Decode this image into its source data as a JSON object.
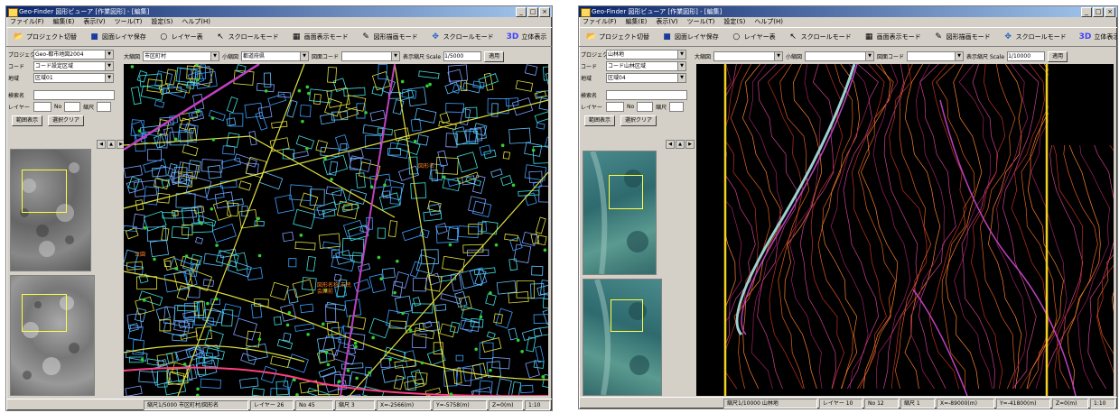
{
  "window1": {
    "title": "Geo-Finder 図形ビューア [作業図形] - [編集]",
    "menu": [
      "ファイル(F)",
      "編集(E)",
      "表示(V)",
      "ツール(T)",
      "設定(S)",
      "ヘルプ(H)"
    ],
    "toolbar": [
      "プロジェクト切替",
      "図面レイヤ保存",
      "レイヤー表",
      "スクロールモード",
      "画面表示モード",
      "図形描画モード",
      "スクロールモード",
      "3D",
      "立体表示"
    ],
    "fields": [
      {
        "label": "プロジェクト",
        "value": "Geo-都市地図2004"
      },
      {
        "label": "コード",
        "value": "コード設定区域"
      },
      {
        "label": "地域",
        "value": "区域01"
      }
    ],
    "search_label": "検索名",
    "layer_label": "レイヤー",
    "layer_no_label": "No",
    "layer_count_label": "縮尺",
    "buttons": [
      "範囲表示",
      "選択クリア"
    ],
    "mapbar": {
      "label1": "大縮図",
      "value1": "市区町村",
      "label2": "小縮図",
      "value2": "都道府県",
      "label3": "図面コード",
      "value3": "",
      "label4": "表示縮尺 Scale",
      "value4": "1/5000",
      "go": "適用"
    },
    "map_labels": [
      "図形名",
      "公園",
      "図形名称 市民会館前"
    ],
    "status": [
      "縮尺1/5000 市区町村/図形名",
      "レイヤー 26",
      "No 45",
      "縮尺 3",
      "X=-2566(m)",
      "Y=-5758(m)",
      "Z=0(m)",
      "1:10"
    ]
  },
  "window2": {
    "title": "Geo-Finder 図形ビューア [作業図形] - [編集]",
    "menu": [
      "ファイル(F)",
      "編集(E)",
      "表示(V)",
      "ツール(T)",
      "設定(S)",
      "ヘルプ(H)"
    ],
    "toolbar": [
      "プロジェクト切替",
      "図面レイヤ保存",
      "レイヤー表",
      "スクロールモード",
      "画面表示モード",
      "図形描画モード",
      "スクロールモード",
      "3D",
      "立体表示"
    ],
    "fields": [
      {
        "label": "プロジェクト",
        "value": "山林地"
      },
      {
        "label": "コード",
        "value": "コード山林区域"
      },
      {
        "label": "地域",
        "value": "区域04"
      }
    ],
    "search_label": "検索名",
    "layer_label": "レイヤー",
    "layer_no_label": "No",
    "layer_count_label": "縮尺",
    "buttons": [
      "範囲表示",
      "選択クリア"
    ],
    "mapbar": {
      "label1": "大縮図",
      "value1": "",
      "label2": "小縮図",
      "value2": "",
      "label3": "図面コード",
      "value3": "",
      "label4": "表示縮尺 Scale",
      "value4": "1/10000",
      "go": "適用"
    },
    "status": [
      "縮尺1/10000 山林地",
      "レイヤー 10",
      "No 12",
      "縮尺 1",
      "X=-89000(m)",
      "Y=-41800(m)",
      "Z=0(m)",
      "1:10"
    ]
  }
}
